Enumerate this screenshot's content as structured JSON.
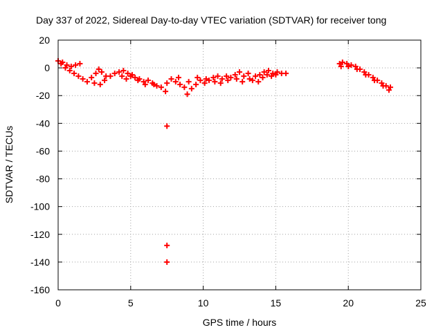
{
  "chart_data": {
    "type": "scatter",
    "title": "Day 337 of 2022, Sidereal Day-to-day VTEC variation (SDTVAR) for receiver tong",
    "xlabel": "GPS time / hours",
    "ylabel": "SDTVAR / TECUs",
    "xlim": [
      0,
      25
    ],
    "ylim": [
      -160,
      20
    ],
    "xticks": [
      0,
      5,
      10,
      15,
      20,
      25
    ],
    "yticks": [
      20,
      0,
      -20,
      -40,
      -60,
      -80,
      -100,
      -120,
      -140,
      -160
    ],
    "grid": true,
    "marker": "+",
    "color": "#ff0000",
    "series": [
      {
        "name": "SDTVAR",
        "points": [
          [
            0.0,
            5
          ],
          [
            0.3,
            4
          ],
          [
            0.6,
            2
          ],
          [
            0.9,
            1
          ],
          [
            1.2,
            2
          ],
          [
            1.5,
            3
          ],
          [
            0.2,
            3
          ],
          [
            0.5,
            0
          ],
          [
            0.8,
            -2
          ],
          [
            1.1,
            -4
          ],
          [
            1.4,
            -6
          ],
          [
            1.7,
            -8
          ],
          [
            2.0,
            -10
          ],
          [
            2.3,
            -7
          ],
          [
            2.6,
            -4
          ],
          [
            2.8,
            -1
          ],
          [
            3.0,
            -3
          ],
          [
            3.3,
            -6
          ],
          [
            2.5,
            -11
          ],
          [
            2.9,
            -12
          ],
          [
            3.2,
            -9
          ],
          [
            3.6,
            -6
          ],
          [
            3.9,
            -4
          ],
          [
            4.2,
            -3
          ],
          [
            4.5,
            -2
          ],
          [
            4.8,
            -4
          ],
          [
            5.0,
            -6
          ],
          [
            5.3,
            -7
          ],
          [
            5.6,
            -8
          ],
          [
            5.9,
            -10
          ],
          [
            6.2,
            -9
          ],
          [
            6.5,
            -11
          ],
          [
            6.8,
            -13
          ],
          [
            7.1,
            -14
          ],
          [
            7.4,
            -17
          ],
          [
            7.5,
            -11
          ],
          [
            4.4,
            -6
          ],
          [
            4.7,
            -8
          ],
          [
            5.1,
            -5
          ],
          [
            5.5,
            -9
          ],
          [
            6.0,
            -12
          ],
          [
            6.6,
            -12
          ],
          [
            7.5,
            -42
          ],
          [
            7.5,
            -128
          ],
          [
            7.5,
            -140
          ],
          [
            7.8,
            -8
          ],
          [
            8.1,
            -10
          ],
          [
            8.4,
            -12
          ],
          [
            8.7,
            -14
          ],
          [
            8.9,
            -19
          ],
          [
            9.2,
            -15
          ],
          [
            9.5,
            -12
          ],
          [
            9.8,
            -9
          ],
          [
            10.1,
            -11
          ],
          [
            10.4,
            -9
          ],
          [
            10.7,
            -7
          ],
          [
            11.0,
            -6
          ],
          [
            8.3,
            -7
          ],
          [
            9.0,
            -10
          ],
          [
            9.6,
            -7
          ],
          [
            10.2,
            -8
          ],
          [
            10.8,
            -10
          ],
          [
            11.3,
            -8
          ],
          [
            11.6,
            -6
          ],
          [
            11.9,
            -7
          ],
          [
            12.2,
            -5
          ],
          [
            12.5,
            -3
          ],
          [
            12.8,
            -6
          ],
          [
            13.1,
            -4
          ],
          [
            11.2,
            -11
          ],
          [
            11.7,
            -9
          ],
          [
            12.3,
            -8
          ],
          [
            12.7,
            -10
          ],
          [
            13.2,
            -8
          ],
          [
            13.6,
            -6
          ],
          [
            13.9,
            -5
          ],
          [
            14.2,
            -3
          ],
          [
            14.5,
            -2
          ],
          [
            14.8,
            -4
          ],
          [
            15.1,
            -3
          ],
          [
            15.4,
            -4
          ],
          [
            15.7,
            -4
          ],
          [
            13.4,
            -9
          ],
          [
            13.8,
            -10
          ],
          [
            14.1,
            -7
          ],
          [
            14.4,
            -5
          ],
          [
            14.7,
            -6
          ],
          [
            15.0,
            -5
          ],
          [
            19.4,
            3
          ],
          [
            19.6,
            4
          ],
          [
            19.9,
            3
          ],
          [
            20.2,
            2
          ],
          [
            20.5,
            1
          ],
          [
            20.8,
            -1
          ],
          [
            21.1,
            -3
          ],
          [
            21.4,
            -5
          ],
          [
            21.7,
            -7
          ],
          [
            22.0,
            -9
          ],
          [
            22.3,
            -11
          ],
          [
            22.6,
            -13
          ],
          [
            22.9,
            -14
          ],
          [
            19.5,
            1
          ],
          [
            20.0,
            1
          ],
          [
            20.6,
            -1
          ],
          [
            21.2,
            -5
          ],
          [
            21.8,
            -9
          ],
          [
            22.4,
            -13
          ],
          [
            22.8,
            -16
          ]
        ]
      }
    ]
  }
}
